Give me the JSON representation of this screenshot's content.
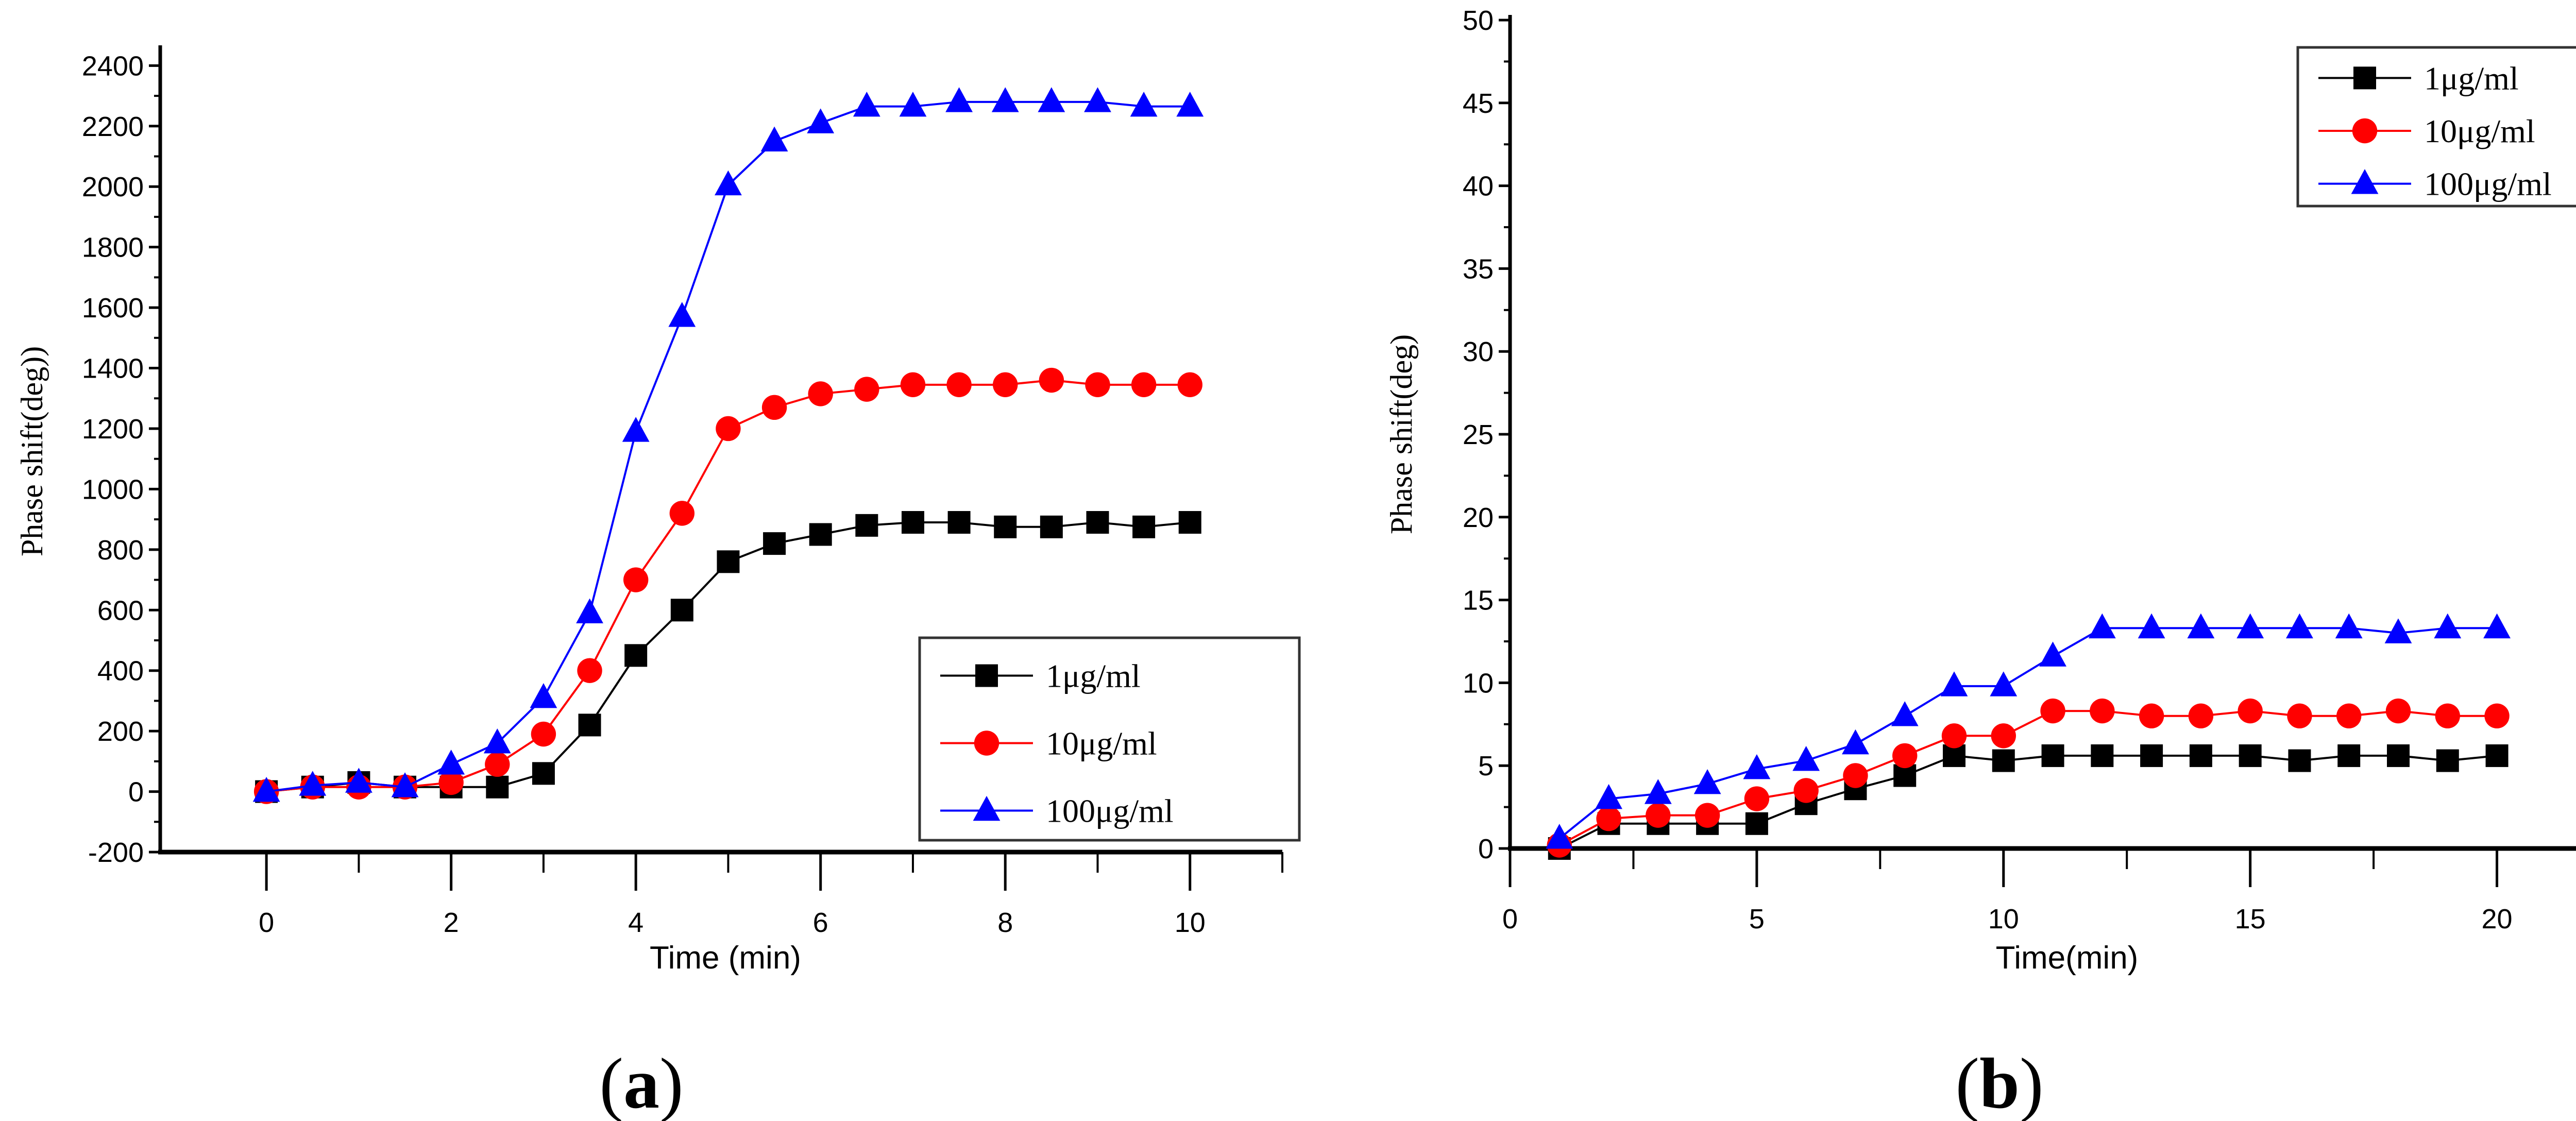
{
  "colors": {
    "s1": "#000000",
    "s2": "#ff0000",
    "s3": "#0000ff"
  },
  "chart_data": [
    {
      "type": "line",
      "panel_label_open": "(",
      "panel_label": "a",
      "panel_label_close": ")",
      "title": "",
      "xlabel": "Time (min)",
      "ylabel": "Phase shift(deg))",
      "xlim": [
        -1.15,
        11
      ],
      "ylim": [
        -200,
        2450
      ],
      "xticks": [
        0,
        2,
        4,
        6,
        8,
        10
      ],
      "xminor": [
        1,
        3,
        5,
        7,
        9,
        11
      ],
      "yticks": [
        -200,
        0,
        200,
        400,
        600,
        800,
        1000,
        1200,
        1400,
        1600,
        1800,
        2000,
        2200,
        2400
      ],
      "legend_position": "bottom-right",
      "grid": false,
      "x": [
        0,
        0.5,
        1,
        1.5,
        2,
        2.5,
        3,
        3.5,
        4,
        4.5,
        5,
        5.5,
        6,
        6.5,
        7,
        7.5,
        8,
        8.5,
        9,
        9.5,
        10
      ],
      "series": [
        {
          "name": "1μg/ml",
          "marker": "square",
          "values": [
            0,
            15,
            30,
            15,
            15,
            15,
            60,
            220,
            450,
            600,
            760,
            820,
            850,
            880,
            890,
            890,
            875,
            875,
            890,
            875,
            890
          ]
        },
        {
          "name": "10μg/ml",
          "marker": "circle",
          "values": [
            0,
            15,
            15,
            15,
            30,
            90,
            190,
            400,
            700,
            920,
            1200,
            1270,
            1315,
            1330,
            1345,
            1345,
            1345,
            1360,
            1345,
            1345,
            1345
          ]
        },
        {
          "name": "100μg/ml",
          "marker": "triangle",
          "values": [
            0,
            20,
            30,
            15,
            90,
            160,
            310,
            590,
            1190,
            1570,
            2005,
            2150,
            2210,
            2265,
            2265,
            2280,
            2280,
            2280,
            2280,
            2265,
            2265
          ]
        }
      ]
    },
    {
      "type": "line",
      "panel_label_open": "(",
      "panel_label": "b",
      "panel_label_close": ")",
      "title": "",
      "xlabel": "Time(min)",
      "ylabel": "Phase shift(deg)",
      "xlim": [
        0,
        22.5
      ],
      "ylim": [
        0,
        50
      ],
      "xticks": [
        0,
        5,
        10,
        15,
        20
      ],
      "xminor": [
        2.5,
        7.5,
        12.5,
        17.5,
        22.5
      ],
      "yticks": [
        0,
        5,
        10,
        15,
        20,
        25,
        30,
        35,
        40,
        45,
        50
      ],
      "legend_position": "top-right",
      "grid": false,
      "x": [
        1,
        2,
        3,
        4,
        5,
        6,
        7,
        8,
        9,
        10,
        11,
        12,
        13,
        14,
        15,
        16,
        17,
        18,
        19,
        20
      ],
      "series": [
        {
          "name": "1μg/ml",
          "marker": "square",
          "values": [
            0,
            1.5,
            1.5,
            1.5,
            1.5,
            2.7,
            3.6,
            4.4,
            5.6,
            5.3,
            5.6,
            5.6,
            5.6,
            5.6,
            5.6,
            5.3,
            5.6,
            5.6,
            5.3,
            5.6
          ]
        },
        {
          "name": "10μg/ml",
          "marker": "circle",
          "values": [
            0.2,
            1.8,
            2,
            2,
            3,
            3.5,
            4.4,
            5.6,
            6.8,
            6.8,
            8.3,
            8.3,
            8,
            8,
            8.3,
            8,
            8,
            8.3,
            8,
            8
          ]
        },
        {
          "name": "100μg/ml",
          "marker": "triangle",
          "values": [
            0.6,
            3,
            3.3,
            3.9,
            4.8,
            5.3,
            6.3,
            8,
            9.8,
            9.8,
            11.6,
            13.3,
            13.3,
            13.3,
            13.3,
            13.3,
            13.3,
            13,
            13.3,
            13.3
          ]
        }
      ]
    }
  ]
}
